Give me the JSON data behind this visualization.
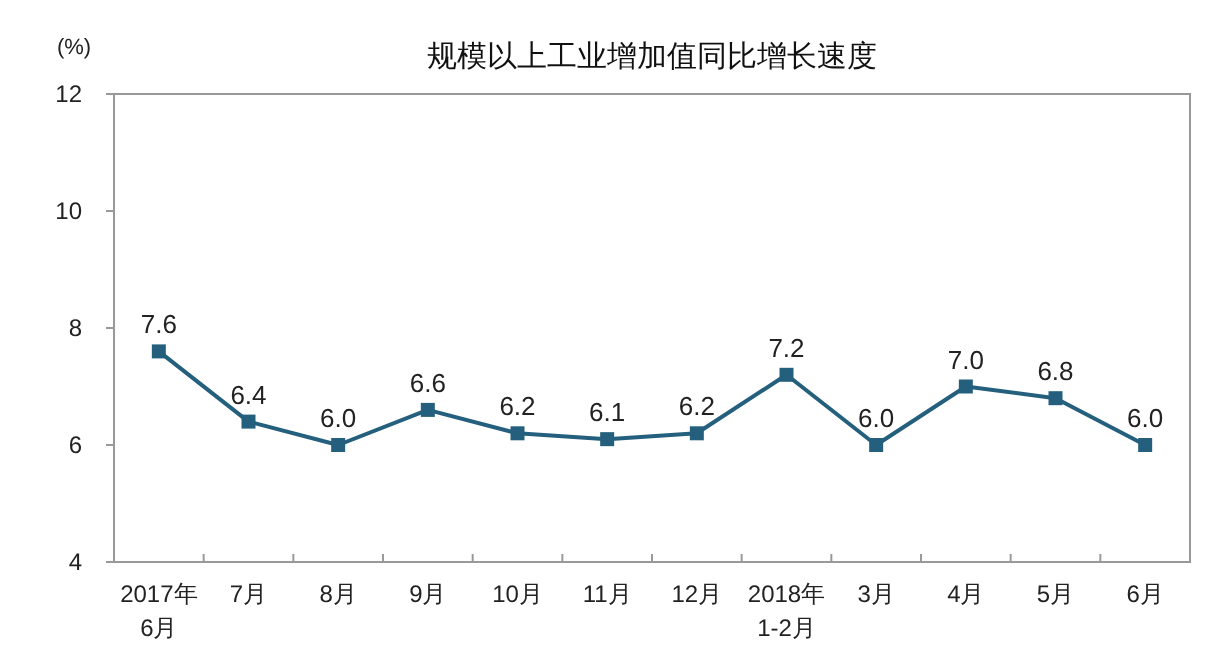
{
  "chart_data": {
    "type": "line",
    "title": "规模以上工业增加值同比增长速度",
    "ylabel": "(%)",
    "categories": [
      "2017年\n6月",
      "7月",
      "8月",
      "9月",
      "10月",
      "11月",
      "12月",
      "2018年\n1-2月",
      "3月",
      "4月",
      "5月",
      "6月"
    ],
    "series": [
      {
        "color": "#24607e",
        "values": [
          7.6,
          6.4,
          6.0,
          6.6,
          6.2,
          6.1,
          6.2,
          7.2,
          6.0,
          7.0,
          6.8,
          6.0
        ],
        "value_labels": [
          "7.6",
          "6.4",
          "6.0",
          "6.6",
          "6.2",
          "6.1",
          "6.2",
          "7.2",
          "6.0",
          "7.0",
          "6.8",
          "6.0"
        ]
      }
    ],
    "ylim": [
      4,
      12
    ],
    "yticks": [
      4,
      6,
      8,
      10,
      12
    ],
    "grid": false,
    "marker": "square",
    "line_style": "solid"
  }
}
